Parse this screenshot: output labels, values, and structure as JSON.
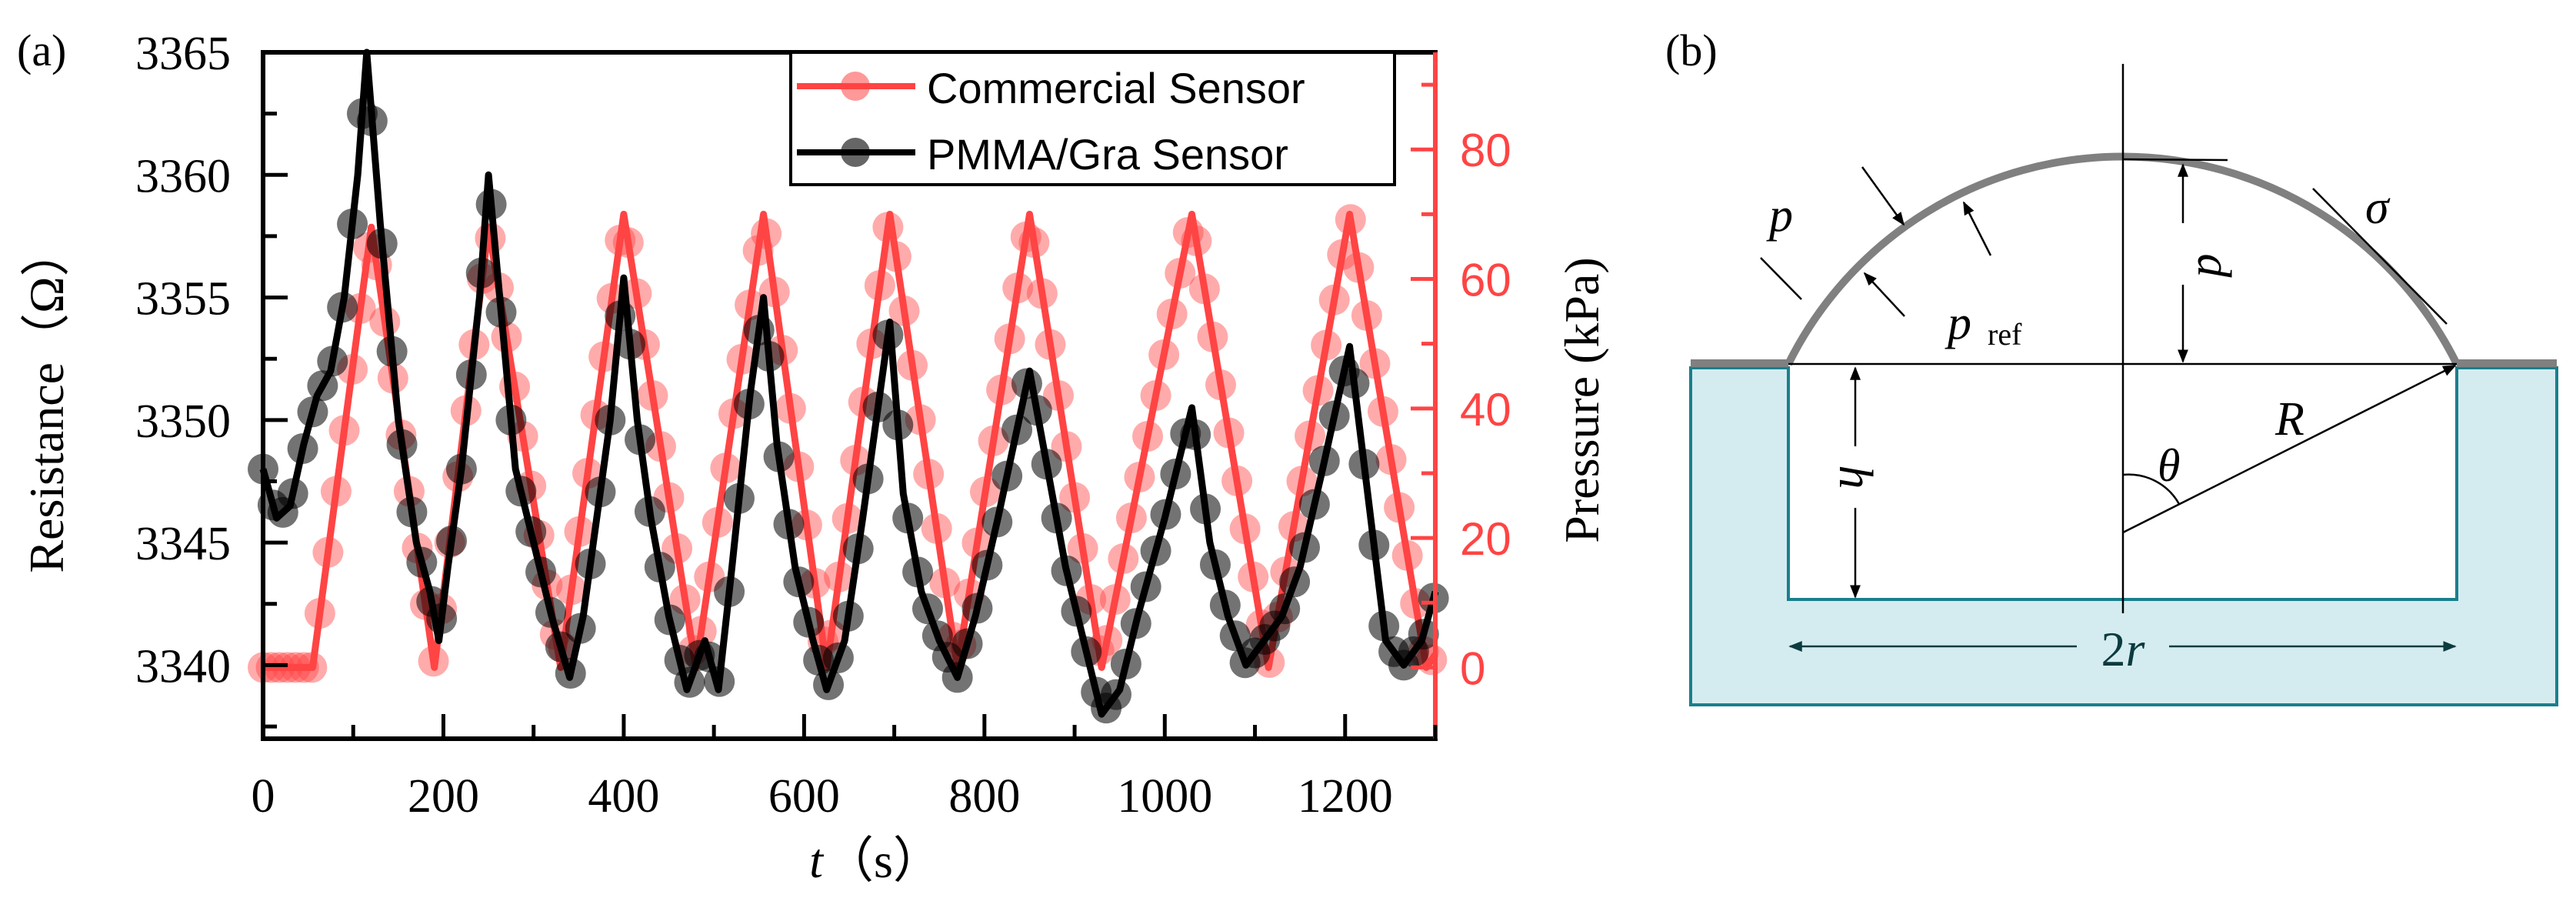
{
  "panel_labels": {
    "a": "(a)",
    "b": "(b)"
  },
  "colors": {
    "commercial": "#ff4444",
    "pmma": "#000000",
    "substrate_fill": "#d4ecf0",
    "substrate_stroke": "#1a7f8c",
    "membrane": "#808080"
  },
  "chart_data": {
    "type": "line",
    "xlabel": "t",
    "xlabel_unit": "（s）",
    "ylabel": "Resistance（Ω）",
    "y2label": "Pressure (kPa)",
    "xlim": [
      0,
      1300
    ],
    "ylim": [
      3337,
      3365
    ],
    "y2lim": [
      -11,
      95
    ],
    "xticks": [
      "0",
      "200",
      "400",
      "600",
      "800",
      "1000",
      "1200"
    ],
    "yticks": [
      "3340",
      "3345",
      "3350",
      "3355",
      "3360",
      "3365"
    ],
    "y2ticks": [
      "0",
      "20",
      "40",
      "60",
      "80"
    ],
    "legend_position": "top-right",
    "series": [
      {
        "name": "Commercial Sensor",
        "axis": "right",
        "points": [
          [
            0,
            0
          ],
          [
            55,
            0
          ],
          [
            120,
            68
          ],
          [
            190,
            0
          ],
          [
            250,
            68
          ],
          [
            330,
            0
          ],
          [
            400,
            70
          ],
          [
            480,
            0
          ],
          [
            555,
            70
          ],
          [
            625,
            0
          ],
          [
            695,
            70
          ],
          [
            770,
            0
          ],
          [
            850,
            70
          ],
          [
            930,
            0
          ],
          [
            1030,
            70
          ],
          [
            1115,
            0
          ],
          [
            1205,
            70
          ],
          [
            1290,
            0
          ],
          [
            1300,
            2
          ]
        ]
      },
      {
        "name": "PMMA/Gra Sensor",
        "axis": "left",
        "points": [
          [
            0,
            3348
          ],
          [
            15,
            3346
          ],
          [
            30,
            3346.5
          ],
          [
            45,
            3349
          ],
          [
            60,
            3351
          ],
          [
            75,
            3352
          ],
          [
            90,
            3355
          ],
          [
            105,
            3360
          ],
          [
            115,
            3365
          ],
          [
            130,
            3358
          ],
          [
            150,
            3350
          ],
          [
            170,
            3345
          ],
          [
            185,
            3343
          ],
          [
            195,
            3341
          ],
          [
            205,
            3344
          ],
          [
            220,
            3348
          ],
          [
            240,
            3355
          ],
          [
            250,
            3360
          ],
          [
            260,
            3356
          ],
          [
            280,
            3348
          ],
          [
            300,
            3345
          ],
          [
            320,
            3342
          ],
          [
            340,
            3339.5
          ],
          [
            355,
            3342
          ],
          [
            370,
            3346
          ],
          [
            385,
            3350
          ],
          [
            400,
            3355.8
          ],
          [
            415,
            3350
          ],
          [
            430,
            3346
          ],
          [
            450,
            3342
          ],
          [
            470,
            3339
          ],
          [
            490,
            3341
          ],
          [
            505,
            3339
          ],
          [
            520,
            3344
          ],
          [
            540,
            3351
          ],
          [
            555,
            3355
          ],
          [
            570,
            3349
          ],
          [
            590,
            3344
          ],
          [
            610,
            3341
          ],
          [
            625,
            3339
          ],
          [
            645,
            3341
          ],
          [
            665,
            3346
          ],
          [
            695,
            3354
          ],
          [
            710,
            3347
          ],
          [
            730,
            3343
          ],
          [
            750,
            3341
          ],
          [
            770,
            3339.5
          ],
          [
            790,
            3342
          ],
          [
            815,
            3346
          ],
          [
            850,
            3352
          ],
          [
            870,
            3348
          ],
          [
            890,
            3344
          ],
          [
            910,
            3341
          ],
          [
            930,
            3338
          ],
          [
            950,
            3339
          ],
          [
            970,
            3342
          ],
          [
            1000,
            3346
          ],
          [
            1030,
            3350.5
          ],
          [
            1050,
            3345
          ],
          [
            1070,
            3342
          ],
          [
            1090,
            3340
          ],
          [
            1110,
            3341
          ],
          [
            1130,
            3342
          ],
          [
            1150,
            3344
          ],
          [
            1175,
            3348
          ],
          [
            1205,
            3353
          ],
          [
            1225,
            3347
          ],
          [
            1245,
            3341
          ],
          [
            1265,
            3340
          ],
          [
            1285,
            3341
          ],
          [
            1300,
            3343
          ]
        ]
      }
    ]
  },
  "diagram": {
    "labels": {
      "p": "p",
      "p_ref": "p",
      "p_ref_sub": "ref",
      "d": "d",
      "sigma": "σ",
      "R": "R",
      "theta": "θ",
      "h": "h",
      "two_r": "2r"
    }
  }
}
